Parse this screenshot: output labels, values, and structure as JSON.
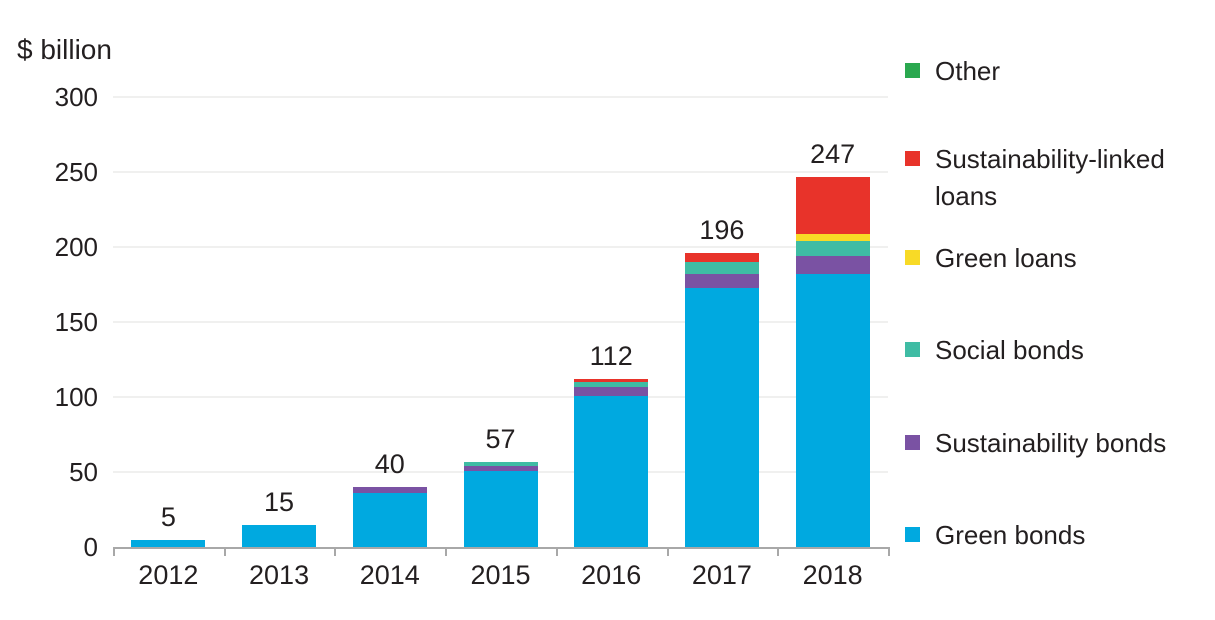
{
  "chart_data": {
    "type": "bar",
    "stacked": true,
    "ylabel": "$ billion",
    "ylim": [
      0,
      300
    ],
    "yticks": [
      0,
      50,
      100,
      150,
      200,
      250,
      300
    ],
    "grid": "horizontal-light",
    "legend_position": "right",
    "categories": [
      "2012",
      "2013",
      "2014",
      "2015",
      "2016",
      "2017",
      "2018"
    ],
    "totals": [
      5,
      15,
      40,
      57,
      112,
      196,
      247
    ],
    "series": [
      {
        "name": "Green bonds",
        "color": "#00a9e0",
        "values": [
          5,
          15,
          36,
          51,
          101,
          173,
          182
        ]
      },
      {
        "name": "Sustainability bonds",
        "color": "#7a52a3",
        "values": [
          0,
          0,
          4,
          3,
          6,
          9,
          12
        ]
      },
      {
        "name": "Social bonds",
        "color": "#3fbca4",
        "values": [
          0,
          0,
          0,
          3,
          3,
          8,
          10
        ]
      },
      {
        "name": "Green loans",
        "color": "#f8da26",
        "values": [
          0,
          0,
          0,
          0,
          0,
          0,
          5
        ]
      },
      {
        "name": "Sustainability-linked loans",
        "color": "#e8332a",
        "values": [
          0,
          0,
          0,
          0,
          2,
          6,
          38
        ]
      },
      {
        "name": "Other",
        "color": "#2aa84f",
        "values": [
          0,
          0,
          0,
          0,
          0,
          0,
          0
        ]
      }
    ],
    "legend_order_top_to_bottom": [
      "Other",
      "Sustainability-linked loans",
      "Green loans",
      "Social bonds",
      "Sustainability bonds",
      "Green bonds"
    ]
  },
  "colors": {
    "text": "#231f20",
    "gridline": "#f0f0ef",
    "axis": "#a8a8a8",
    "background": "#ffffff"
  }
}
